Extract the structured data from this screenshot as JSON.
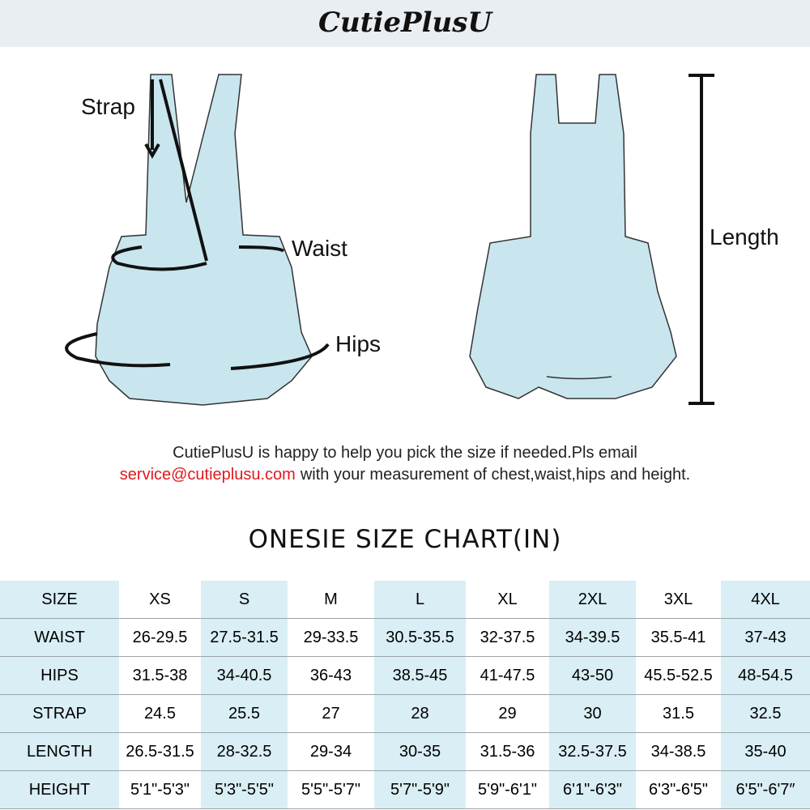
{
  "header": {
    "logo": "CutiePlusU"
  },
  "diagram": {
    "labels": {
      "strap": "Strap",
      "waist": "Waist",
      "hips": "Hips",
      "length": "Length"
    }
  },
  "note": {
    "line1": "CutiePlusU is happy to help you pick the size if needed.Pls email",
    "email": "service@cutieplusu.com",
    "line2": "with your measurement of chest,waist,hips and height."
  },
  "table": {
    "title": "ONESIE SIZE CHART(IN)",
    "header": [
      "SIZE",
      "XS",
      "S",
      "M",
      "L",
      "XL",
      "2XL",
      "3XL",
      "4XL"
    ],
    "rows": [
      [
        "WAIST",
        "26-29.5",
        "27.5-31.5",
        "29-33.5",
        "30.5-35.5",
        "32-37.5",
        "34-39.5",
        "35.5-41",
        "37-43"
      ],
      [
        "HIPS",
        "31.5-38",
        "34-40.5",
        "36-43",
        "38.5-45",
        "41-47.5",
        "43-50",
        "45.5-52.5",
        "48-54.5"
      ],
      [
        "STRAP",
        "24.5",
        "25.5",
        "27",
        "28",
        "29",
        "30",
        "31.5",
        "32.5"
      ],
      [
        "LENGTH",
        "26.5-31.5",
        "28-32.5",
        "29-34",
        "30-35",
        "31.5-36",
        "32.5-37.5",
        "34-38.5",
        "35-40"
      ],
      [
        "HEIGHT",
        "5'1\"-5'3\"",
        "5'3\"-5'5\"",
        "5'5\"-5'7\"",
        "5'7\"-5'9\"",
        "5'9\"-6'1\"",
        "6'1\"-6'3\"",
        "6'3\"-6'5\"",
        "6'5\"-6'7″"
      ]
    ]
  }
}
